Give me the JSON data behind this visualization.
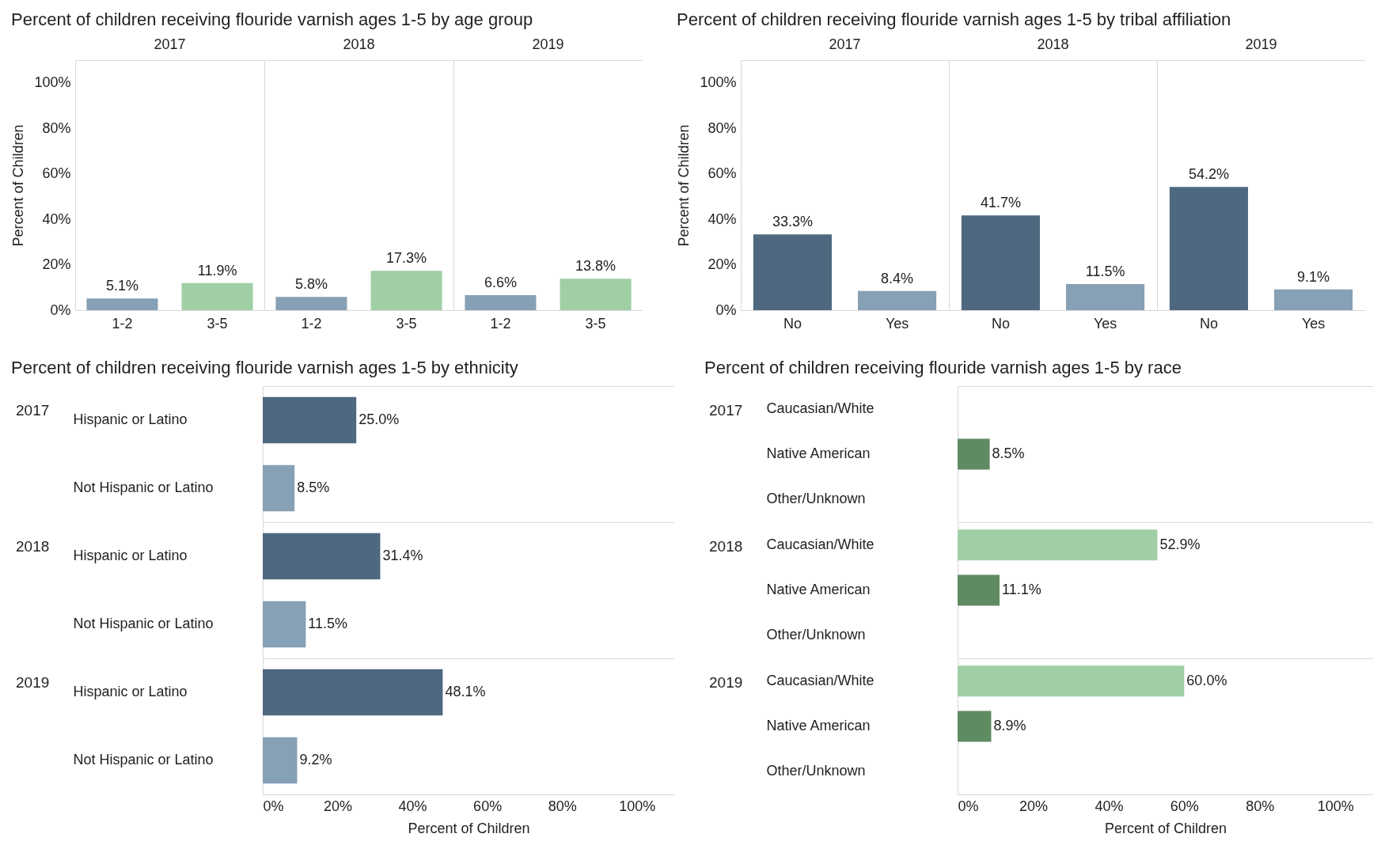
{
  "chart_data": [
    {
      "type": "bar",
      "title": "Percent of children receiving flouride varnish ages 1-5 by age group",
      "subtitle": "2017",
      "ylabel": "Percent of Children",
      "categories": [
        "1-2",
        "3-5"
      ],
      "values": [
        5.1,
        11.9
      ],
      "colors": [
        "#86a0b5",
        "#a0cfa6"
      ],
      "value_labels": [
        "5.1%",
        "11.9%"
      ],
      "ylim": [
        0,
        110
      ],
      "yticks": [
        {
          "value": 0,
          "label": "0%"
        },
        {
          "value": 20,
          "label": "20%"
        },
        {
          "value": 40,
          "label": "40%"
        },
        {
          "value": 60,
          "label": "60%"
        },
        {
          "value": 80,
          "label": "80%"
        },
        {
          "value": 100,
          "label": "100%"
        }
      ]
    },
    {
      "type": "bar",
      "subtitle": "2018",
      "categories": [
        "1-2",
        "3-5"
      ],
      "values": [
        5.8,
        17.3
      ],
      "colors": [
        "#86a0b5",
        "#a0cfa6"
      ],
      "value_labels": [
        "5.8%",
        "17.3%"
      ],
      "ylim": [
        0,
        110
      ],
      "tick_labels": "x"
    },
    {
      "type": "bar",
      "subtitle": "2019",
      "categories": [
        "1-2",
        "3-5"
      ],
      "values": [
        6.6,
        13.8
      ],
      "colors": [
        "#86a0b5",
        "#a0cfa6"
      ],
      "value_labels": [
        "6.6%",
        "13.8%"
      ],
      "ylim": [
        0,
        110
      ],
      "tick_labels": "x"
    },
    {
      "type": "bar",
      "title": "Percent of children receiving flouride varnish ages 1-5 by tribal affiliation",
      "subtitle": "2017",
      "ylabel": "Percent of Children",
      "categories": [
        "No",
        "Yes"
      ],
      "values": [
        33.3,
        8.4
      ],
      "colors": [
        "#4e6880",
        "#86a0b5"
      ],
      "value_labels": [
        "33.3%",
        "8.4%"
      ],
      "ylim": [
        0,
        110
      ],
      "yticks": [
        {
          "value": 0,
          "label": "0%"
        },
        {
          "value": 20,
          "label": "20%"
        },
        {
          "value": 40,
          "label": "40%"
        },
        {
          "value": 60,
          "label": "60%"
        },
        {
          "value": 80,
          "label": "80%"
        },
        {
          "value": 100,
          "label": "100%"
        }
      ]
    },
    {
      "type": "bar",
      "subtitle": "2018",
      "categories": [
        "No",
        "Yes"
      ],
      "values": [
        41.7,
        11.5
      ],
      "colors": [
        "#4e6880",
        "#86a0b5"
      ],
      "value_labels": [
        "41.7%",
        "11.5%"
      ],
      "ylim": [
        0,
        110
      ],
      "tick_labels": "x"
    },
    {
      "type": "bar",
      "subtitle": "2019",
      "categories": [
        "No",
        "Yes"
      ],
      "values": [
        54.2,
        9.1
      ],
      "colors": [
        "#4e6880",
        "#86a0b5"
      ],
      "value_labels": [
        "54.2%",
        "9.1%"
      ],
      "ylim": [
        0,
        110
      ],
      "tick_labels": "x"
    },
    {
      "type": "bar",
      "orientation": "horizontal",
      "title": "Percent of children receiving flouride varnish ages 1-5 by ethnicity",
      "subtitle": "2017",
      "categories": [
        "Hispanic or Latino",
        "Not Hispanic or Latino"
      ],
      "values": [
        25.0,
        8.5
      ],
      "colors": [
        "#4e6880",
        "#86a0b5"
      ],
      "value_labels": [
        "25.0%",
        "8.5%"
      ],
      "xlim": [
        0,
        110
      ],
      "tick_labels": "y"
    },
    {
      "type": "bar",
      "orientation": "horizontal",
      "subtitle": "2018",
      "categories": [
        "Hispanic or Latino",
        "Not Hispanic or Latino"
      ],
      "values": [
        31.4,
        11.5
      ],
      "colors": [
        "#4e6880",
        "#86a0b5"
      ],
      "value_labels": [
        "31.4%",
        "11.5%"
      ],
      "xlim": [
        0,
        110
      ],
      "tick_labels": "y"
    },
    {
      "type": "bar",
      "orientation": "horizontal",
      "subtitle": "2019",
      "xlabel": "Percent of Children",
      "categories": [
        "Hispanic or Latino",
        "Not Hispanic or Latino"
      ],
      "values": [
        48.1,
        9.2
      ],
      "colors": [
        "#4e6880",
        "#86a0b5"
      ],
      "value_labels": [
        "48.1%",
        "9.2%"
      ],
      "xlim": [
        0,
        110
      ],
      "xticks": [
        {
          "value": 0,
          "label": "0%"
        },
        {
          "value": 20,
          "label": "20%"
        },
        {
          "value": 40,
          "label": "40%"
        },
        {
          "value": 60,
          "label": "60%"
        },
        {
          "value": 80,
          "label": "80%"
        },
        {
          "value": 100,
          "label": "100%"
        }
      ]
    },
    {
      "type": "bar",
      "orientation": "horizontal",
      "title": "Percent of children receiving flouride varnish ages 1-5 by race",
      "subtitle": "2017",
      "categories": [
        "Caucasian/White",
        "Native American",
        "Other/Unknown"
      ],
      "values": [
        null,
        8.5,
        null
      ],
      "colors": [
        "#a0cfa6",
        "#5f8b62",
        null
      ],
      "value_labels": [
        null,
        "8.5%",
        null
      ],
      "xlim": [
        0,
        110
      ],
      "tick_labels": "y"
    },
    {
      "type": "bar",
      "orientation": "horizontal",
      "subtitle": "2018",
      "categories": [
        "Caucasian/White",
        "Native American",
        "Other/Unknown"
      ],
      "values": [
        52.9,
        11.1,
        null
      ],
      "colors": [
        "#a0cfa6",
        "#5f8b62",
        null
      ],
      "value_labels": [
        "52.9%",
        "11.1%",
        null
      ],
      "xlim": [
        0,
        110
      ],
      "tick_labels": "y"
    },
    {
      "type": "bar",
      "orientation": "horizontal",
      "subtitle": "2019",
      "xlabel": "Percent of Children",
      "categories": [
        "Caucasian/White",
        "Native American",
        "Other/Unknown"
      ],
      "values": [
        60.0,
        8.9,
        null
      ],
      "colors": [
        "#a0cfa6",
        "#5f8b62",
        null
      ],
      "value_labels": [
        "60.0%",
        "8.9%",
        null
      ],
      "xlim": [
        0,
        110
      ],
      "xticks": [
        {
          "value": 0,
          "label": "0%"
        },
        {
          "value": 20,
          "label": "20%"
        },
        {
          "value": 40,
          "label": "40%"
        },
        {
          "value": 60,
          "label": "60%"
        },
        {
          "value": 80,
          "label": "80%"
        },
        {
          "value": 100,
          "label": "100%"
        }
      ]
    }
  ]
}
